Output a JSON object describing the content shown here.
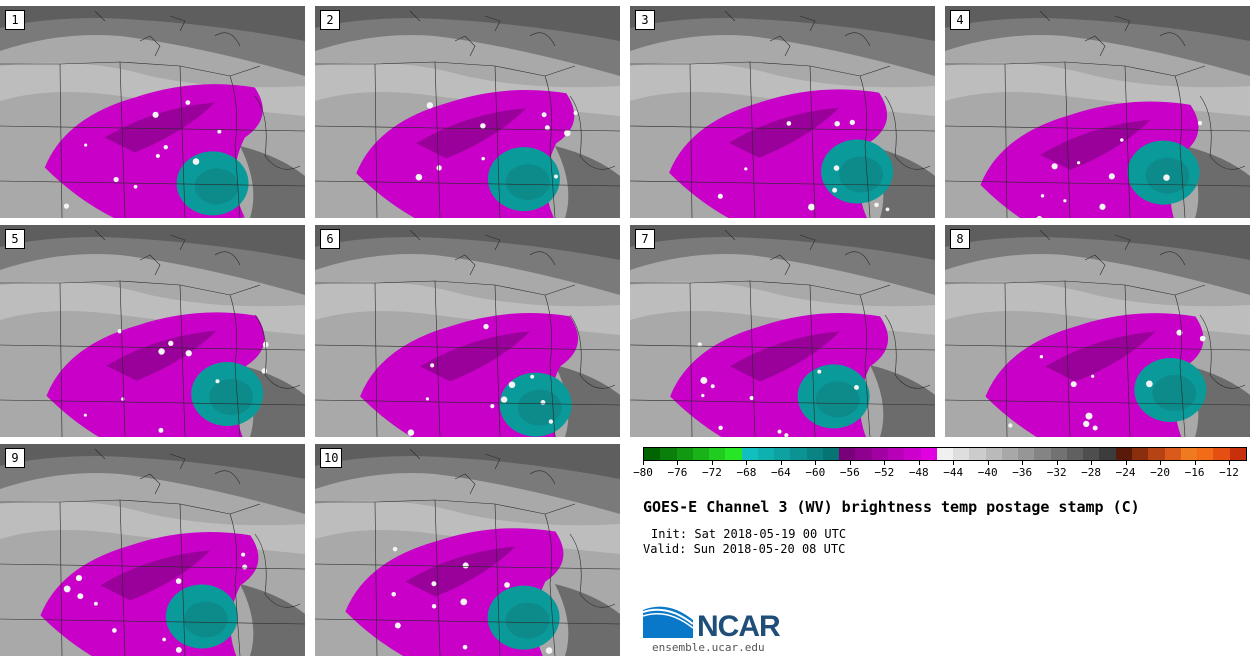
{
  "panels": [
    {
      "label": "1"
    },
    {
      "label": "2"
    },
    {
      "label": "3"
    },
    {
      "label": "4"
    },
    {
      "label": "5"
    },
    {
      "label": "6"
    },
    {
      "label": "7"
    },
    {
      "label": "8"
    },
    {
      "label": "9"
    },
    {
      "label": "10"
    }
  ],
  "colorbar": {
    "colors": [
      "#006400",
      "#0b7f0b",
      "#129912",
      "#19b319",
      "#1fcc1f",
      "#26e626",
      "#11bfbf",
      "#0fb0b0",
      "#0da1a1",
      "#0b9292",
      "#098383",
      "#077474",
      "#780078",
      "#8f008f",
      "#a300a3",
      "#b800b8",
      "#cc00cc",
      "#e000e0",
      "#f0f0f0",
      "#dedede",
      "#cccccc",
      "#bababa",
      "#a8a8a8",
      "#969696",
      "#848484",
      "#727272",
      "#606060",
      "#4e4e4e",
      "#3c3c3c",
      "#5a1a0a",
      "#8a2f0e",
      "#b54314",
      "#d95a1a",
      "#f07b1f",
      "#f26b18",
      "#e64f12",
      "#c8300c"
    ],
    "tick_labels": [
      "−80",
      "−76",
      "−72",
      "−68",
      "−64",
      "−60",
      "−56",
      "−52",
      "−48",
      "−44",
      "−40",
      "−36",
      "−32",
      "−28",
      "−24",
      "−20",
      "−16",
      "−12"
    ]
  },
  "title": "GOES-E Channel 3 (WV) brightness temp postage stamp (C)",
  "init": "Init: Sat 2018-05-19 00 UTC",
  "valid": "Valid: Sun 2018-05-20 08 UTC",
  "logo": {
    "text": "NCAR",
    "url": "ensemble.ucar.edu"
  }
}
